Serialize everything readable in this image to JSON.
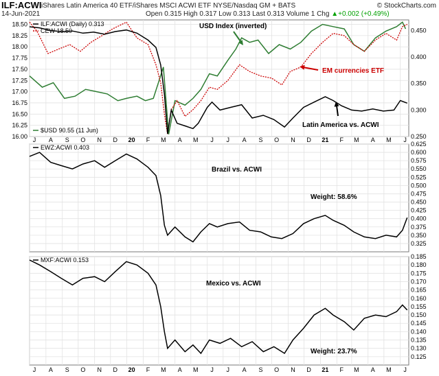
{
  "header": {
    "ticker": "ILF:ACWI",
    "description": "iShares Latin America 40 ETF/iShares MSCI ACWI ETF  NYSE/Nasdaq GM + BATS",
    "site": "© StockCharts.com",
    "date": "14-Jun-2021",
    "quote_prefix": "Open 0.315  High 0.317  Low 0.313  Last 0.313  Volume 1  Chg",
    "quote_change": "+0.002 (+0.49%)",
    "quote_arrow": "▲"
  },
  "x_axis": {
    "labels": [
      "J",
      "A",
      "S",
      "O",
      "N",
      "D",
      "20",
      "F",
      "M",
      "A",
      "M",
      "J",
      "J",
      "A",
      "S",
      "O",
      "N",
      "D",
      "21",
      "F",
      "M",
      "A",
      "M",
      "J"
    ],
    "label_start_month": "2019-07"
  },
  "chart_data": [
    {
      "type": "line",
      "panel": "top",
      "ylim": [
        16.0,
        18.6
      ],
      "y_ticks_left": [
        "16.00",
        "16.25",
        "16.50",
        "16.75",
        "17.00",
        "17.25",
        "17.50",
        "17.75",
        "18.00",
        "18.25",
        "18.50"
      ],
      "y2lim": [
        0.25,
        0.47
      ],
      "y_ticks_right": [
        "0.250",
        "0.300",
        "0.350",
        "0.400",
        "0.450"
      ],
      "legend": [
        {
          "label": "ILF:ACWI (Daily) 0.313",
          "color": "#000000"
        },
        {
          "label": "CEW 18.50",
          "color": "#cc0000"
        }
      ],
      "bottom_legend": {
        "label": "$USD 90.55 (11 Jun)",
        "color": "#2e7d32"
      },
      "annotations": [
        {
          "text": "USD Index (inverted)",
          "color": "#000000"
        },
        {
          "text": "EM currencies ETF",
          "color": "#cc0000"
        },
        {
          "text": "Latin America vs. ACWI",
          "color": "#000000"
        }
      ],
      "series": [
        {
          "name": "ILF:ACWI (Daily) 0.313",
          "color": "#000000",
          "axis": "right",
          "x": [
            "2019-07-01",
            "2019-07-20",
            "2019-08-10",
            "2019-08-30",
            "2019-09-20",
            "2019-10-10",
            "2019-10-30",
            "2019-11-20",
            "2019-12-10",
            "2019-12-31",
            "2020-01-20",
            "2020-02-10",
            "2020-02-25",
            "2020-03-05",
            "2020-03-12",
            "2020-03-18",
            "2020-03-25",
            "2020-04-05",
            "2020-04-20",
            "2020-05-05",
            "2020-05-15",
            "2020-06-01",
            "2020-06-10",
            "2020-06-25",
            "2020-07-15",
            "2020-08-05",
            "2020-08-25",
            "2020-09-15",
            "2020-10-05",
            "2020-10-25",
            "2020-11-10",
            "2020-11-30",
            "2020-12-20",
            "2021-01-10",
            "2021-01-25",
            "2021-02-10",
            "2021-03-01",
            "2021-03-20",
            "2021-04-10",
            "2021-04-30",
            "2021-05-20",
            "2021-06-01",
            "2021-06-14"
          ],
          "y": [
            0.457,
            0.455,
            0.45,
            0.448,
            0.449,
            0.445,
            0.447,
            0.443,
            0.448,
            0.451,
            0.445,
            0.432,
            0.418,
            0.385,
            0.33,
            0.255,
            0.3,
            0.275,
            0.27,
            0.265,
            0.275,
            0.305,
            0.315,
            0.3,
            0.305,
            0.31,
            0.285,
            0.29,
            0.282,
            0.268,
            0.285,
            0.305,
            0.315,
            0.325,
            0.318,
            0.308,
            0.3,
            0.298,
            0.302,
            0.298,
            0.3,
            0.318,
            0.313
          ]
        },
        {
          "name": "CEW 18.50",
          "color": "#cc0000",
          "axis": "left",
          "x": [
            "2019-07-01",
            "2019-07-15",
            "2019-08-05",
            "2019-08-25",
            "2019-09-15",
            "2019-10-05",
            "2019-10-25",
            "2019-11-15",
            "2019-12-05",
            "2019-12-31",
            "2020-01-20",
            "2020-02-10",
            "2020-02-25",
            "2020-03-05",
            "2020-03-12",
            "2020-03-18",
            "2020-03-25",
            "2020-04-05",
            "2020-04-20",
            "2020-05-05",
            "2020-05-20",
            "2020-06-05",
            "2020-06-20",
            "2020-07-10",
            "2020-08-01",
            "2020-08-20",
            "2020-09-10",
            "2020-10-01",
            "2020-10-20",
            "2020-11-05",
            "2020-11-25",
            "2020-12-15",
            "2021-01-05",
            "2021-01-25",
            "2021-02-15",
            "2021-03-05",
            "2021-03-25",
            "2021-04-15",
            "2021-05-05",
            "2021-05-25",
            "2021-06-05",
            "2021-06-14"
          ],
          "y": [
            18.55,
            18.35,
            17.85,
            17.95,
            18.05,
            17.9,
            18.1,
            18.25,
            18.4,
            18.55,
            18.2,
            18.05,
            17.6,
            17.2,
            16.5,
            16.05,
            16.6,
            16.8,
            16.45,
            16.6,
            16.8,
            17.1,
            17.05,
            17.25,
            17.6,
            17.45,
            17.35,
            17.3,
            17.15,
            17.45,
            17.55,
            17.85,
            18.1,
            18.3,
            18.25,
            18.05,
            17.9,
            18.15,
            18.3,
            18.15,
            18.45,
            18.5
          ]
        },
        {
          "name": "$USD 90.55 (11 Jun)",
          "color": "#2e7d32",
          "axis": "left_inverted",
          "x": [
            "2019-07-01",
            "2019-07-25",
            "2019-08-15",
            "2019-09-05",
            "2019-09-25",
            "2019-10-15",
            "2019-11-05",
            "2019-11-25",
            "2019-12-15",
            "2019-12-31",
            "2020-01-20",
            "2020-02-05",
            "2020-02-20",
            "2020-03-02",
            "2020-03-10",
            "2020-03-20",
            "2020-04-01",
            "2020-04-20",
            "2020-05-05",
            "2020-05-20",
            "2020-06-05",
            "2020-06-20",
            "2020-07-10",
            "2020-07-25",
            "2020-08-05",
            "2020-08-20",
            "2020-09-05",
            "2020-09-25",
            "2020-10-15",
            "2020-11-05",
            "2020-11-25",
            "2020-12-15",
            "2021-01-05",
            "2021-01-25",
            "2021-02-15",
            "2021-03-05",
            "2021-03-25",
            "2021-04-15",
            "2021-05-05",
            "2021-05-25",
            "2021-06-05",
            "2021-06-11"
          ],
          "y": [
            17.35,
            17.1,
            17.2,
            16.85,
            16.9,
            17.05,
            17.0,
            16.95,
            16.8,
            16.85,
            16.9,
            16.8,
            16.85,
            17.25,
            17.55,
            16.05,
            16.8,
            16.7,
            16.85,
            17.05,
            17.4,
            17.35,
            17.7,
            17.95,
            18.2,
            18.1,
            18.15,
            17.85,
            18.05,
            17.95,
            18.1,
            18.35,
            18.5,
            18.45,
            18.4,
            18.05,
            17.9,
            18.2,
            18.35,
            18.45,
            18.55,
            18.4
          ]
        }
      ]
    },
    {
      "type": "line",
      "panel": "middle",
      "legend": [
        {
          "label": "EWZ:ACWI 0.403",
          "color": "#000000"
        }
      ],
      "ylim": [
        0.3,
        0.625
      ],
      "y_ticks_right": [
        "0.325",
        "0.350",
        "0.375",
        "0.400",
        "0.425",
        "0.450",
        "0.475",
        "0.500",
        "0.525",
        "0.550",
        "0.575",
        "0.600",
        "0.625"
      ],
      "annotations": [
        {
          "text": "Brazil vs. ACWI",
          "color": "#000000"
        },
        {
          "text": "Weight: 58.6%",
          "color": "#000000"
        }
      ],
      "series": [
        {
          "name": "EWZ:ACWI 0.403",
          "color": "#000000",
          "x": [
            "2019-07-01",
            "2019-07-20",
            "2019-08-10",
            "2019-08-30",
            "2019-09-20",
            "2019-10-10",
            "2019-11-01",
            "2019-11-20",
            "2019-12-10",
            "2019-12-31",
            "2020-01-20",
            "2020-02-10",
            "2020-02-25",
            "2020-03-05",
            "2020-03-12",
            "2020-03-18",
            "2020-04-01",
            "2020-04-20",
            "2020-05-05",
            "2020-05-20",
            "2020-06-05",
            "2020-06-20",
            "2020-07-10",
            "2020-08-01",
            "2020-08-20",
            "2020-09-10",
            "2020-09-30",
            "2020-10-20",
            "2020-11-10",
            "2020-11-30",
            "2020-12-20",
            "2021-01-10",
            "2021-01-25",
            "2021-02-15",
            "2021-03-05",
            "2021-03-25",
            "2021-04-15",
            "2021-05-05",
            "2021-05-25",
            "2021-06-05",
            "2021-06-14"
          ],
          "y": [
            0.588,
            0.6,
            0.57,
            0.56,
            0.55,
            0.565,
            0.575,
            0.555,
            0.575,
            0.595,
            0.58,
            0.555,
            0.53,
            0.47,
            0.38,
            0.35,
            0.375,
            0.345,
            0.33,
            0.36,
            0.385,
            0.375,
            0.385,
            0.39,
            0.365,
            0.36,
            0.345,
            0.34,
            0.355,
            0.385,
            0.4,
            0.41,
            0.395,
            0.38,
            0.36,
            0.345,
            0.34,
            0.35,
            0.345,
            0.365,
            0.403
          ]
        }
      ]
    },
    {
      "type": "line",
      "panel": "bottom",
      "legend": [
        {
          "label": "MXF:ACWI 0.153",
          "color": "#000000"
        }
      ],
      "ylim": [
        0.12,
        0.185
      ],
      "y_ticks_right": [
        "0.125",
        "0.130",
        "0.135",
        "0.140",
        "0.145",
        "0.150",
        "0.155",
        "0.160",
        "0.165",
        "0.170",
        "0.175",
        "0.180",
        "0.185"
      ],
      "annotations": [
        {
          "text": "Mexico vs. ACWI",
          "color": "#000000"
        },
        {
          "text": "Weight: 23.7%",
          "color": "#000000"
        }
      ],
      "series": [
        {
          "name": "MXF:ACWI 0.153",
          "color": "#000000",
          "x": [
            "2019-07-01",
            "2019-07-20",
            "2019-08-10",
            "2019-08-30",
            "2019-09-20",
            "2019-10-10",
            "2019-11-01",
            "2019-11-20",
            "2019-12-10",
            "2019-12-31",
            "2020-01-20",
            "2020-02-10",
            "2020-02-25",
            "2020-03-05",
            "2020-03-12",
            "2020-03-18",
            "2020-04-01",
            "2020-04-20",
            "2020-05-05",
            "2020-05-20",
            "2020-06-05",
            "2020-06-25",
            "2020-07-15",
            "2020-08-05",
            "2020-08-25",
            "2020-09-15",
            "2020-10-05",
            "2020-10-25",
            "2020-11-10",
            "2020-11-30",
            "2020-12-20",
            "2021-01-10",
            "2021-01-25",
            "2021-02-15",
            "2021-03-05",
            "2021-03-25",
            "2021-04-15",
            "2021-05-05",
            "2021-05-25",
            "2021-06-05",
            "2021-06-14"
          ],
          "y": [
            0.183,
            0.18,
            0.176,
            0.172,
            0.168,
            0.172,
            0.173,
            0.17,
            0.176,
            0.182,
            0.18,
            0.175,
            0.168,
            0.155,
            0.14,
            0.13,
            0.135,
            0.128,
            0.132,
            0.127,
            0.135,
            0.133,
            0.136,
            0.131,
            0.134,
            0.128,
            0.131,
            0.127,
            0.135,
            0.142,
            0.15,
            0.154,
            0.15,
            0.146,
            0.141,
            0.148,
            0.15,
            0.149,
            0.152,
            0.156,
            0.153
          ]
        }
      ]
    }
  ]
}
